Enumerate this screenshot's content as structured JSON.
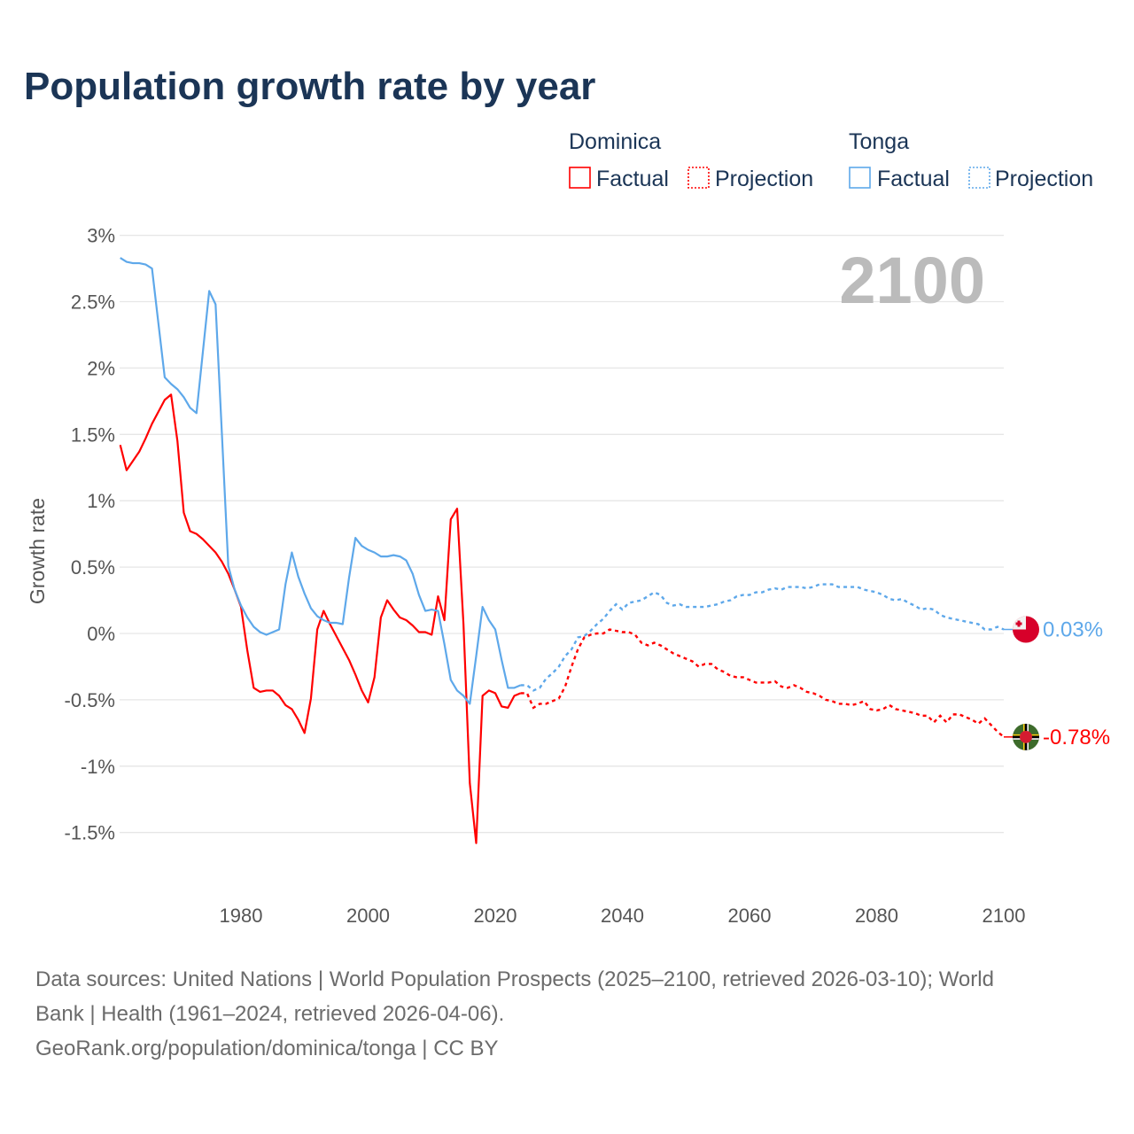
{
  "chart_data": {
    "type": "line",
    "title": "Population growth rate by year",
    "ylabel": "Growth rate",
    "xlabel": "",
    "ylim": [
      -1.9,
      3.0
    ],
    "xlim": [
      1961,
      2100
    ],
    "y_ticks": [
      3,
      2.5,
      2,
      1.5,
      1,
      0.5,
      0,
      -0.5,
      -1,
      -1.5
    ],
    "y_tick_labels": [
      "3%",
      "2.5%",
      "2%",
      "1.5%",
      "1%",
      "0.5%",
      "0%",
      "-0.5%",
      "-1%",
      "-1.5%"
    ],
    "x_ticks": [
      1980,
      2000,
      2020,
      2040,
      2060,
      2080,
      2100
    ],
    "x_tick_labels": [
      "1980",
      "2000",
      "2020",
      "2040",
      "2060",
      "2080",
      "2100"
    ],
    "grid": true,
    "legend_placement": "top-right",
    "year_label": "2100",
    "factual_start_year": 1961,
    "projection_start_year": 2025,
    "series": [
      {
        "name": "Dominica",
        "color": "#ff0000",
        "end_label": "-0.78%",
        "flag": "dominica-flag",
        "factual": [
          1.42,
          1.23,
          1.3,
          1.37,
          1.47,
          1.58,
          1.67,
          1.76,
          1.8,
          1.45,
          0.91,
          0.77,
          0.75,
          0.71,
          0.66,
          0.61,
          0.54,
          0.45,
          0.33,
          0.2,
          -0.13,
          -0.41,
          -0.44,
          -0.43,
          -0.43,
          -0.47,
          -0.54,
          -0.57,
          -0.65,
          -0.75,
          -0.49,
          0.03,
          0.17,
          0.07,
          -0.02,
          -0.11,
          -0.2,
          -0.31,
          -0.43,
          -0.52,
          -0.33,
          0.12,
          0.25,
          0.18,
          0.12,
          0.1,
          0.06,
          0.01,
          0.01,
          -0.01,
          0.28,
          0.1,
          0.86,
          0.94,
          0.07,
          -1.13,
          -1.58,
          -0.47,
          -0.43,
          -0.45,
          -0.55,
          -0.56,
          -0.47,
          -0.45
        ],
        "projection": [
          -0.45,
          -0.56,
          -0.53,
          -0.53,
          -0.51,
          -0.49,
          -0.4,
          -0.25,
          -0.12,
          -0.03,
          -0.01,
          0.0,
          0.0,
          0.03,
          0.02,
          0.01,
          0.01,
          -0.01,
          -0.07,
          -0.09,
          -0.07,
          -0.09,
          -0.12,
          -0.15,
          -0.17,
          -0.19,
          -0.21,
          -0.25,
          -0.23,
          -0.23,
          -0.27,
          -0.29,
          -0.32,
          -0.33,
          -0.33,
          -0.35,
          -0.37,
          -0.37,
          -0.37,
          -0.36,
          -0.4,
          -0.41,
          -0.39,
          -0.41,
          -0.44,
          -0.45,
          -0.47,
          -0.5,
          -0.51,
          -0.53,
          -0.53,
          -0.54,
          -0.53,
          -0.51,
          -0.57,
          -0.58,
          -0.57,
          -0.54,
          -0.57,
          -0.58,
          -0.59,
          -0.6,
          -0.62,
          -0.62,
          -0.67,
          -0.62,
          -0.67,
          -0.61,
          -0.61,
          -0.63,
          -0.65,
          -0.68,
          -0.64,
          -0.69,
          -0.74,
          -0.78
        ]
      },
      {
        "name": "Tonga",
        "color": "#5ea8ea",
        "end_label": "0.03%",
        "flag": "tonga-flag",
        "factual": [
          2.83,
          2.8,
          2.79,
          2.79,
          2.78,
          2.75,
          2.34,
          1.93,
          1.88,
          1.84,
          1.78,
          1.7,
          1.66,
          2.12,
          2.58,
          2.48,
          1.5,
          0.51,
          0.33,
          0.21,
          0.12,
          0.05,
          0.01,
          -0.01,
          0.01,
          0.03,
          0.37,
          0.61,
          0.43,
          0.3,
          0.19,
          0.13,
          0.1,
          0.08,
          0.08,
          0.07,
          0.42,
          0.72,
          0.66,
          0.63,
          0.61,
          0.58,
          0.58,
          0.59,
          0.58,
          0.55,
          0.45,
          0.29,
          0.17,
          0.18,
          0.17,
          -0.08,
          -0.35,
          -0.43,
          -0.47,
          -0.53,
          -0.17,
          0.2,
          0.1,
          0.03,
          -0.2,
          -0.41,
          -0.41,
          -0.39
        ],
        "projection": [
          -0.39,
          -0.43,
          -0.41,
          -0.34,
          -0.3,
          -0.25,
          -0.17,
          -0.12,
          -0.03,
          -0.02,
          0.02,
          0.07,
          0.11,
          0.17,
          0.22,
          0.18,
          0.23,
          0.24,
          0.25,
          0.28,
          0.31,
          0.29,
          0.23,
          0.21,
          0.22,
          0.2,
          0.2,
          0.2,
          0.2,
          0.21,
          0.22,
          0.24,
          0.25,
          0.28,
          0.29,
          0.29,
          0.31,
          0.31,
          0.33,
          0.34,
          0.33,
          0.35,
          0.35,
          0.35,
          0.34,
          0.35,
          0.37,
          0.37,
          0.37,
          0.35,
          0.35,
          0.35,
          0.35,
          0.33,
          0.32,
          0.31,
          0.29,
          0.26,
          0.25,
          0.26,
          0.23,
          0.21,
          0.18,
          0.19,
          0.18,
          0.14,
          0.12,
          0.11,
          0.1,
          0.09,
          0.08,
          0.07,
          0.03,
          0.03,
          0.05,
          0.03
        ]
      }
    ]
  },
  "legend": {
    "groups": [
      {
        "country": "Dominica",
        "factual_label": "Factual",
        "projection_label": "Projection"
      },
      {
        "country": "Tonga",
        "factual_label": "Factual",
        "projection_label": "Projection"
      }
    ]
  },
  "footer": {
    "line1": "Data sources: United Nations | World Population Prospects (2025–2100, retrieved 2026-03-10); World",
    "line2": "Bank | Health (1961–2024, retrieved 2026-04-06).",
    "line3": "GeoRank.org/population/dominica/tonga | CC BY"
  }
}
